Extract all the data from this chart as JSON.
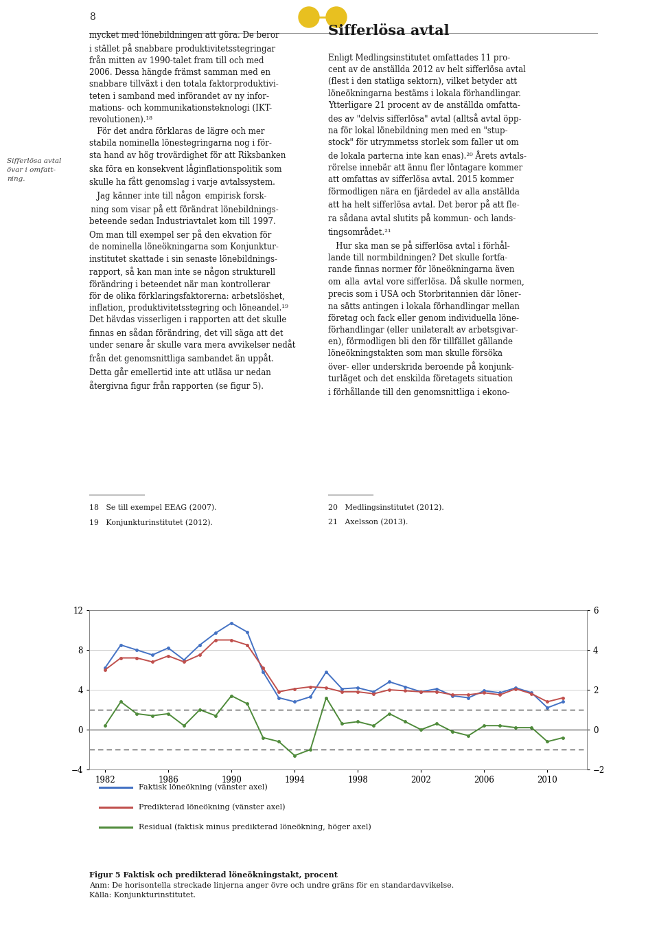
{
  "page_number": "8",
  "background_color": "#ffffff",
  "left_margin_text": "Sifferlösa avtal\növar i omfatt-\nning.",
  "years": [
    1982,
    1983,
    1984,
    1985,
    1986,
    1987,
    1988,
    1989,
    1990,
    1991,
    1992,
    1993,
    1994,
    1995,
    1996,
    1997,
    1998,
    1999,
    2000,
    2001,
    2002,
    2003,
    2004,
    2005,
    2006,
    2007,
    2008,
    2009,
    2010,
    2011
  ],
  "faktisk": [
    6.2,
    8.5,
    8.0,
    7.5,
    8.2,
    7.0,
    8.5,
    9.7,
    10.7,
    9.8,
    5.8,
    3.2,
    2.8,
    3.3,
    5.8,
    4.1,
    4.2,
    3.8,
    4.8,
    4.3,
    3.8,
    4.1,
    3.4,
    3.2,
    3.9,
    3.7,
    4.2,
    3.7,
    2.2,
    2.8
  ],
  "predikterad": [
    6.0,
    7.2,
    7.2,
    6.8,
    7.4,
    6.8,
    7.5,
    9.0,
    9.0,
    8.5,
    6.2,
    3.8,
    4.1,
    4.3,
    4.2,
    3.8,
    3.8,
    3.6,
    4.0,
    3.9,
    3.8,
    3.8,
    3.5,
    3.5,
    3.7,
    3.5,
    4.1,
    3.6,
    2.8,
    3.2
  ],
  "residual": [
    0.2,
    1.4,
    0.8,
    0.7,
    0.8,
    0.2,
    1.0,
    0.7,
    1.7,
    1.3,
    -0.4,
    -0.6,
    -1.3,
    -1.0,
    1.6,
    0.3,
    0.4,
    0.2,
    0.8,
    0.4,
    0.0,
    0.3,
    -0.1,
    -0.3,
    0.2,
    0.2,
    0.1,
    0.1,
    -0.6,
    -0.4
  ],
  "left_ylim": [
    -4,
    12
  ],
  "right_ylim": [
    -2,
    6
  ],
  "left_yticks": [
    -4,
    0,
    4,
    8,
    12
  ],
  "right_yticks": [
    -2,
    0,
    2,
    4,
    6
  ],
  "xticks": [
    1982,
    1986,
    1990,
    1994,
    1998,
    2002,
    2006,
    2010
  ],
  "blue_color": "#4472C4",
  "red_color": "#C0504D",
  "green_color": "#4F8B3B",
  "line_width": 1.4,
  "legend_labels": [
    "Faktisk löneökning (vänster axel)",
    "Predikterad löneökning (vänster axel)",
    "Residual (faktisk minus predikterad löneökning, höger axel)"
  ],
  "caption_title": "Figur 5 Faktisk och predikterad löneökningstakt, procent",
  "caption_anm": "Anm: De horisontella streckade linjerna anger övre och undre gräns för en standardavvikelse.",
  "caption_kalla": "Källa: Konjunkturinstitutet."
}
